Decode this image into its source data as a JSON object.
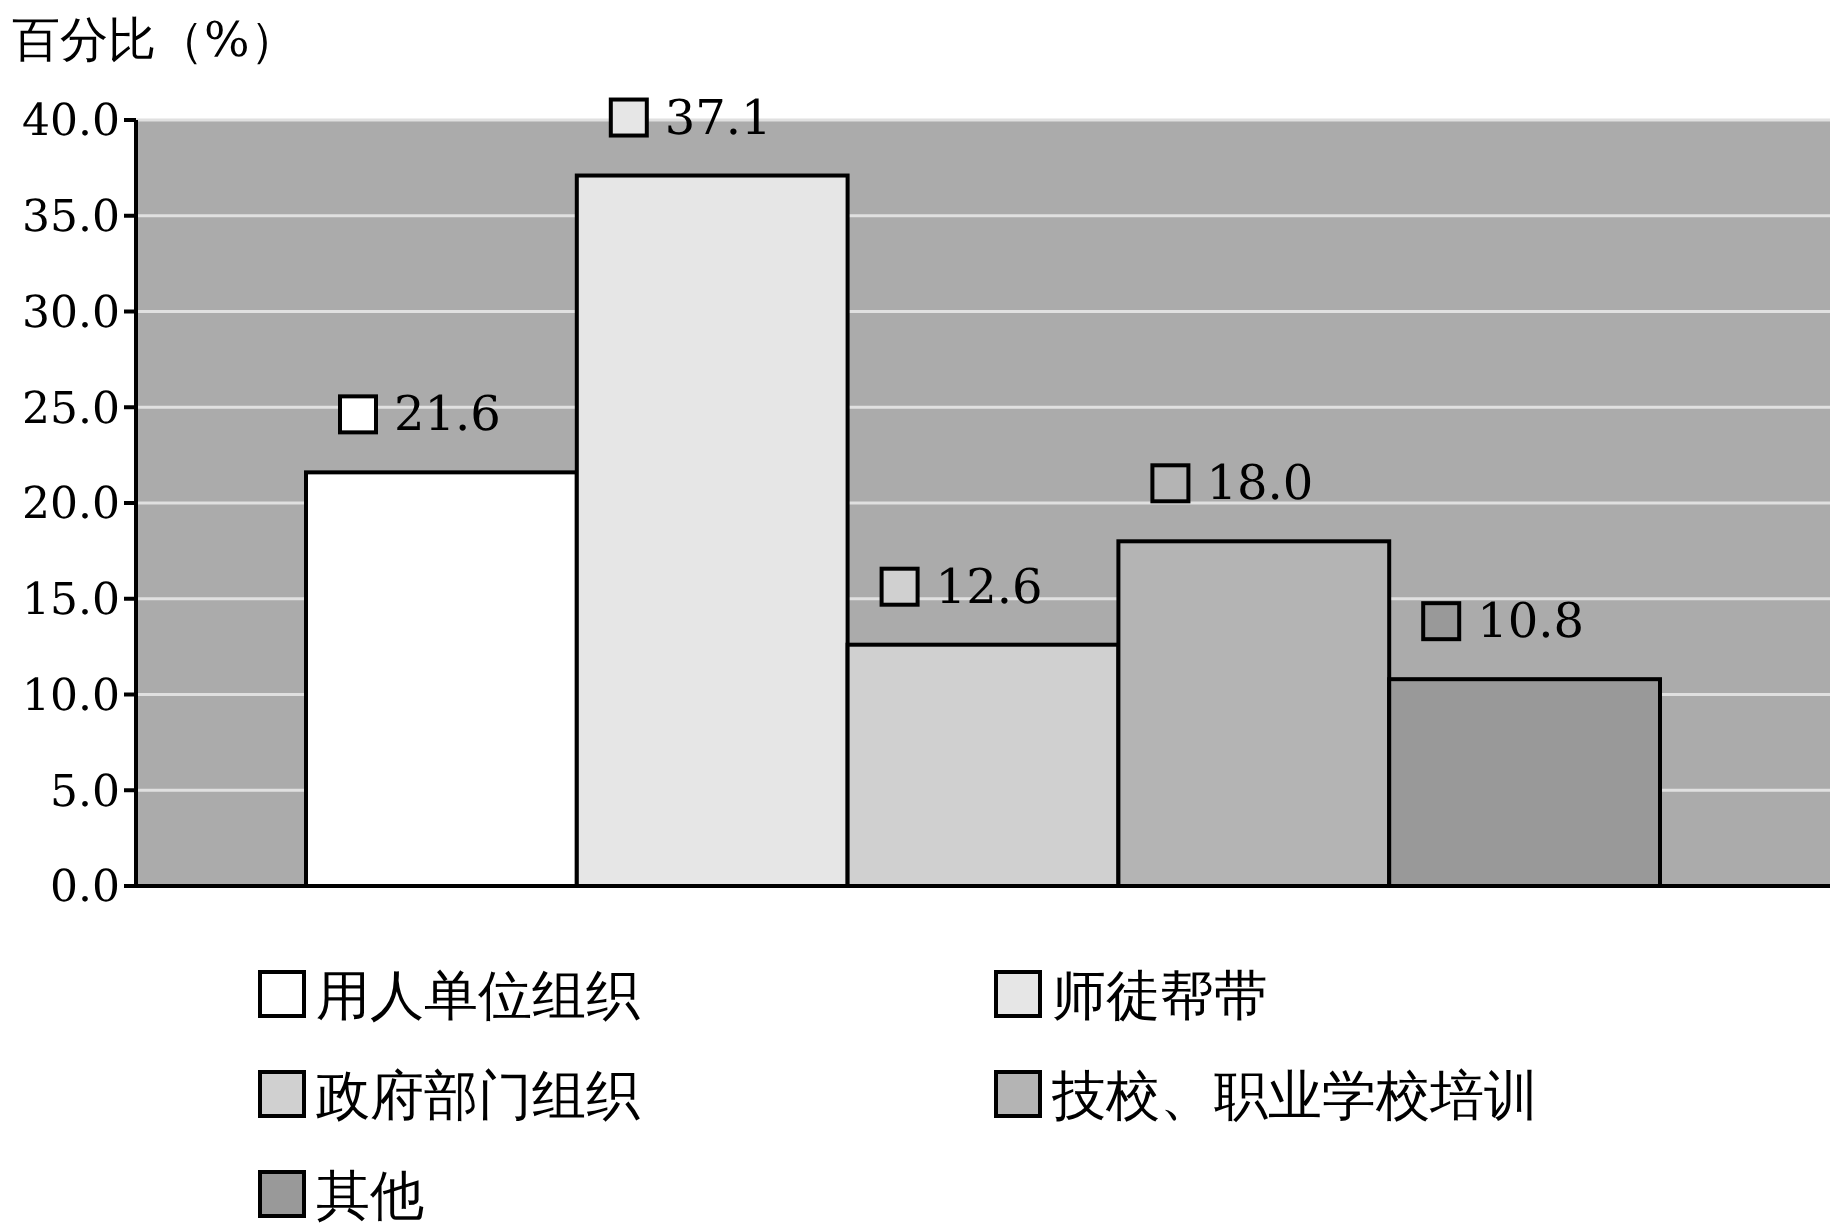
{
  "chart_data": {
    "type": "bar",
    "ylabel": "百分比（%）",
    "categories": [
      null
    ],
    "series": [
      {
        "name": "用人单位组织",
        "color": "#ffffff",
        "values": [
          21.6
        ],
        "value_labels": [
          "21.6"
        ]
      },
      {
        "name": "师徒帮带",
        "color": "#e6e6e6",
        "values": [
          37.1
        ],
        "value_labels": [
          "37.1"
        ]
      },
      {
        "name": "政府部门组织",
        "color": "#d0d0d0",
        "values": [
          12.6
        ],
        "value_labels": [
          "12.6"
        ]
      },
      {
        "name": "技校、职业学校培训",
        "color": "#b4b4b4",
        "values": [
          18.0
        ],
        "value_labels": [
          "18.0"
        ]
      },
      {
        "name": "其他",
        "color": "#999999",
        "values": [
          10.8
        ],
        "value_labels": [
          "10.8"
        ]
      }
    ],
    "ylim": [
      0,
      40
    ],
    "yticks": [
      {
        "value": 0,
        "label": "0.0"
      },
      {
        "value": 5,
        "label": "5.0"
      },
      {
        "value": 10,
        "label": "10.0"
      },
      {
        "value": 15,
        "label": "15.0"
      },
      {
        "value": 20,
        "label": "20.0"
      },
      {
        "value": 25,
        "label": "25.0"
      },
      {
        "value": 30,
        "label": "30.0"
      },
      {
        "value": 35,
        "label": "35.0"
      },
      {
        "value": 40,
        "label": "40.0"
      }
    ],
    "grid": "y",
    "legend": "bottom"
  }
}
